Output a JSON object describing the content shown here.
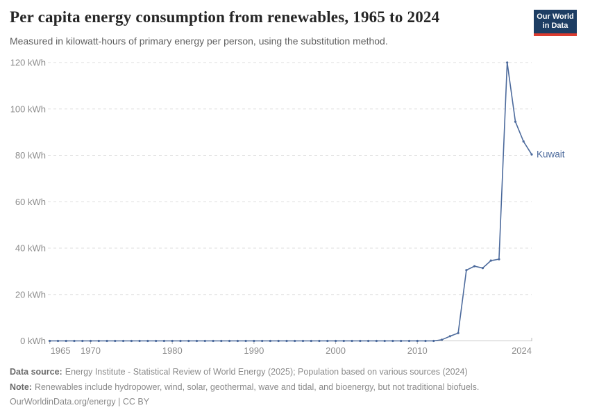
{
  "header": {
    "logo_line1": "Our World",
    "logo_line2": "in Data"
  },
  "chart_data": {
    "type": "line",
    "title": "Per capita energy consumption from renewables, 1965 to 2024",
    "subtitle": "Measured in kilowatt-hours of primary energy per person, using the substitution method.",
    "xlabel": "",
    "ylabel": "",
    "xlim": [
      1965,
      2024
    ],
    "ylim": [
      0,
      120
    ],
    "grid": "horizontal-dashed",
    "legend": "line-end-label",
    "unit": "kWh",
    "yticks": [
      {
        "value": 0,
        "label": "0 kWh"
      },
      {
        "value": 20,
        "label": "20 kWh"
      },
      {
        "value": 40,
        "label": "40 kWh"
      },
      {
        "value": 60,
        "label": "60 kWh"
      },
      {
        "value": 80,
        "label": "80 kWh"
      },
      {
        "value": 100,
        "label": "100 kWh"
      },
      {
        "value": 120,
        "label": "120 kWh"
      }
    ],
    "xticks": [
      {
        "value": 1965,
        "label": "1965"
      },
      {
        "value": 1970,
        "label": "1970"
      },
      {
        "value": 1980,
        "label": "1980"
      },
      {
        "value": 1990,
        "label": "1990"
      },
      {
        "value": 2000,
        "label": "2000"
      },
      {
        "value": 2010,
        "label": "2010"
      },
      {
        "value": 2024,
        "label": "2024"
      }
    ],
    "series": [
      {
        "name": "Kuwait",
        "color": "#4c6a9c",
        "x": [
          1965,
          1966,
          1967,
          1968,
          1969,
          1970,
          1971,
          1972,
          1973,
          1974,
          1975,
          1976,
          1977,
          1978,
          1979,
          1980,
          1981,
          1982,
          1983,
          1984,
          1985,
          1986,
          1987,
          1988,
          1989,
          1990,
          1991,
          1992,
          1993,
          1994,
          1995,
          1996,
          1997,
          1998,
          1999,
          2000,
          2001,
          2002,
          2003,
          2004,
          2005,
          2006,
          2007,
          2008,
          2009,
          2010,
          2011,
          2012,
          2013,
          2014,
          2015,
          2016,
          2017,
          2018,
          2019,
          2020,
          2021,
          2022,
          2023,
          2024
        ],
        "values": [
          0,
          0,
          0,
          0,
          0,
          0,
          0,
          0,
          0,
          0,
          0,
          0,
          0,
          0,
          0,
          0,
          0,
          0,
          0,
          0,
          0,
          0,
          0,
          0,
          0,
          0,
          0,
          0,
          0,
          0,
          0,
          0,
          0,
          0,
          0,
          0,
          0,
          0,
          0,
          0,
          0,
          0,
          0,
          0,
          0,
          0,
          0,
          0,
          0.5,
          2,
          3.4,
          30.5,
          32.2,
          31.4,
          34.6,
          35.2,
          120,
          94.5,
          86,
          80.4
        ]
      }
    ]
  },
  "colors": {
    "line": "#4c6a9c",
    "gridline": "#dedede",
    "axis": "#c8c8c8",
    "tick_text": "#8c8c8c",
    "logo_bg": "#1d3d63",
    "logo_red": "#dc3b2f"
  },
  "footer": {
    "data_source_label": "Data source:",
    "data_source_text": "Energy Institute - Statistical Review of World Energy (2025); Population based on various sources (2024)",
    "note_label": "Note:",
    "note_text": "Renewables include hydropower, wind, solar, geothermal, wave and tidal, and bioenergy, but not traditional biofuels.",
    "license_link": "OurWorldinData.org/energy",
    "license_sep": " | ",
    "license_text": "CC BY"
  }
}
